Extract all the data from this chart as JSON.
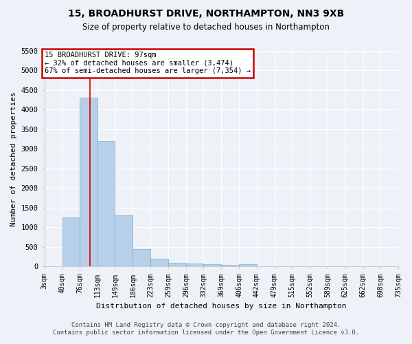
{
  "title_line1": "15, BROADHURST DRIVE, NORTHAMPTON, NN3 9XB",
  "title_line2": "Size of property relative to detached houses in Northampton",
  "xlabel": "Distribution of detached houses by size in Northampton",
  "ylabel": "Number of detached properties",
  "footer_line1": "Contains HM Land Registry data © Crown copyright and database right 2024.",
  "footer_line2": "Contains public sector information licensed under the Open Government Licence v3.0.",
  "bins": [
    3,
    40,
    76,
    113,
    149,
    186,
    223,
    259,
    296,
    332,
    369,
    406,
    442,
    479,
    515,
    552,
    589,
    625,
    662,
    698,
    735
  ],
  "bar_heights": [
    0,
    1250,
    4300,
    3200,
    1300,
    450,
    200,
    100,
    75,
    55,
    50,
    60,
    0,
    0,
    0,
    0,
    0,
    0,
    0,
    0
  ],
  "bar_color": "#b8cfe8",
  "bar_edge_color": "#7aafd4",
  "ylim": [
    0,
    5500
  ],
  "yticks": [
    0,
    500,
    1000,
    1500,
    2000,
    2500,
    3000,
    3500,
    4000,
    4500,
    5000,
    5500
  ],
  "property_size": 97,
  "red_line_color": "#cc0000",
  "annotation_text_line1": "15 BROADHURST DRIVE: 97sqm",
  "annotation_text_line2": "← 32% of detached houses are smaller (3,474)",
  "annotation_text_line3": "67% of semi-detached houses are larger (7,354) →",
  "annotation_box_color": "#cc0000",
  "background_color": "#eef2f8",
  "grid_color": "#ffffff",
  "title_fontsize": 10,
  "subtitle_fontsize": 8.5,
  "axis_label_fontsize": 8,
  "tick_fontsize": 7,
  "footer_fontsize": 6.5
}
